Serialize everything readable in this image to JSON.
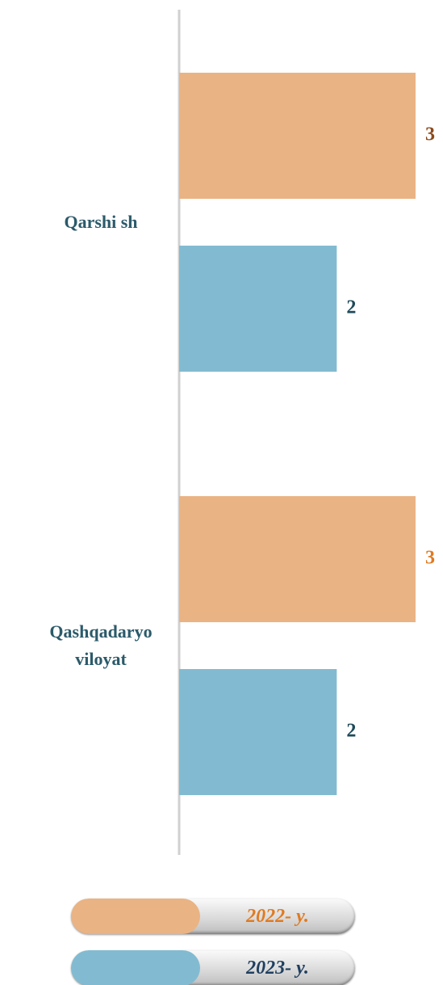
{
  "chart_data": {
    "type": "bar",
    "orientation": "horizontal",
    "categories": [
      "Qarshi sh",
      "Qashqadaryo viloyat"
    ],
    "series": [
      {
        "name": "2022- y.",
        "color": "#eab384",
        "values": [
          3,
          3
        ]
      },
      {
        "name": "2023- y.",
        "color": "#82bbd1",
        "values": [
          2,
          2
        ]
      }
    ],
    "xlim": [
      0,
      3
    ]
  }
}
